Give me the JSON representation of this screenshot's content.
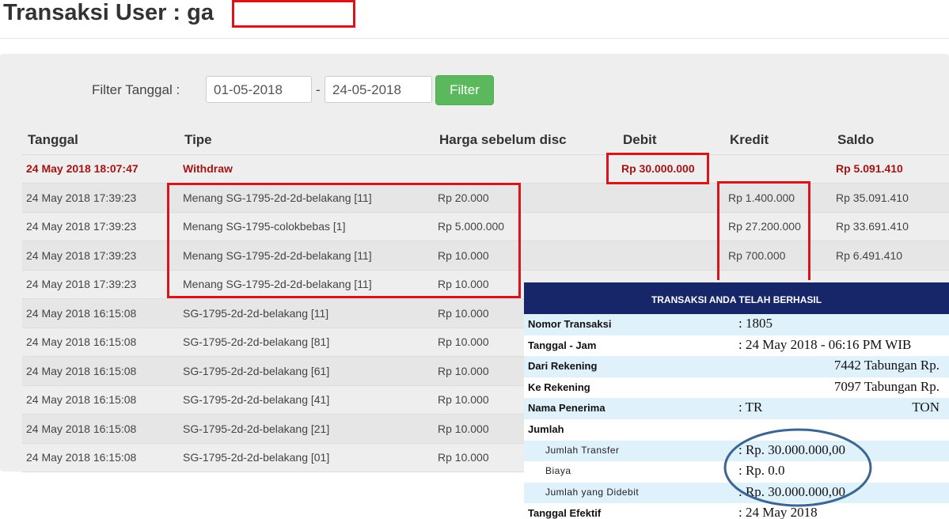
{
  "header": {
    "title": "Transaksi User : ga"
  },
  "filter": {
    "label": "Filter Tanggal :",
    "from": "01-05-2018",
    "separator": "-",
    "to": "24-05-2018",
    "button": "Filter"
  },
  "table": {
    "columns": {
      "tanggal": "Tanggal",
      "tipe": "Tipe",
      "harga": "Harga sebelum disc",
      "debit": "Debit",
      "kredit": "Kredit",
      "saldo": "Saldo"
    },
    "rows": [
      {
        "tanggal": "24 May 2018 18:07:47",
        "tipe": "Withdraw",
        "debit": "Rp 30.000.000",
        "saldo": "Rp 5.091.410"
      },
      {
        "tanggal": "24 May 2018 17:39:23",
        "tipe": "Menang SG-1795-2d-2d-belakang [11]",
        "harga": "Rp 20.000",
        "kredit": "Rp 1.400.000",
        "saldo": "Rp 35.091.410"
      },
      {
        "tanggal": "24 May 2018 17:39:23",
        "tipe": "Menang SG-1795-colokbebas [1]",
        "harga": "Rp 5.000.000",
        "kredit": "Rp 27.200.000",
        "saldo": "Rp 33.691.410"
      },
      {
        "tanggal": "24 May 2018 17:39:23",
        "tipe": "Menang SG-1795-2d-2d-belakang [11]",
        "harga": "Rp 10.000",
        "kredit": "Rp 700.000",
        "saldo": "Rp 6.491.410"
      },
      {
        "tanggal": "24 May 2018 17:39:23",
        "tipe": "Menang SG-1795-2d-2d-belakang [11]",
        "harga": "Rp 10.000"
      },
      {
        "tanggal": "24 May 2018 16:15:08",
        "tipe": "SG-1795-2d-2d-belakang [11]",
        "harga": "Rp 10.000"
      },
      {
        "tanggal": "24 May 2018 16:15:08",
        "tipe": "SG-1795-2d-2d-belakang [81]",
        "harga": "Rp 10.000"
      },
      {
        "tanggal": "24 May 2018 16:15:08",
        "tipe": "SG-1795-2d-2d-belakang [61]",
        "harga": "Rp 10.000"
      },
      {
        "tanggal": "24 May 2018 16:15:08",
        "tipe": "SG-1795-2d-2d-belakang [41]",
        "harga": "Rp 10.000"
      },
      {
        "tanggal": "24 May 2018 16:15:08",
        "tipe": "SG-1795-2d-2d-belakang [21]",
        "harga": "Rp 10.000"
      },
      {
        "tanggal": "24 May 2018 16:15:08",
        "tipe": "SG-1795-2d-2d-belakang [01]",
        "harga": "Rp 10.000"
      }
    ]
  },
  "receipt": {
    "title": "TRANSAKSI ANDA TELAH BERHASIL",
    "rows": [
      {
        "label": "Nomor Transaksi",
        "value": ": 1805"
      },
      {
        "label": "Tanggal - Jam",
        "value": ": 24 May 2018 - 06:16 PM WIB"
      },
      {
        "label": "Dari Rekening",
        "value_right": "7442 Tabungan  Rp."
      },
      {
        "label": "Ke Rekening",
        "value_right": "7097 Tabungan Rp."
      },
      {
        "label": "Nama Penerima",
        "value": ": TR",
        "value_right": "TON"
      },
      {
        "label": "Jumlah"
      },
      {
        "sublabel": "Jumlah Transfer",
        "value": ": Rp. 30.000.000,00"
      },
      {
        "sublabel": "Biaya",
        "value": ": Rp. 0.0"
      },
      {
        "sublabel": "Jumlah yang Didebit",
        "value": ": Rp. 30.000.000,00"
      },
      {
        "label": "Tanggal Efektif",
        "value": ": 24 May 2018"
      }
    ]
  }
}
